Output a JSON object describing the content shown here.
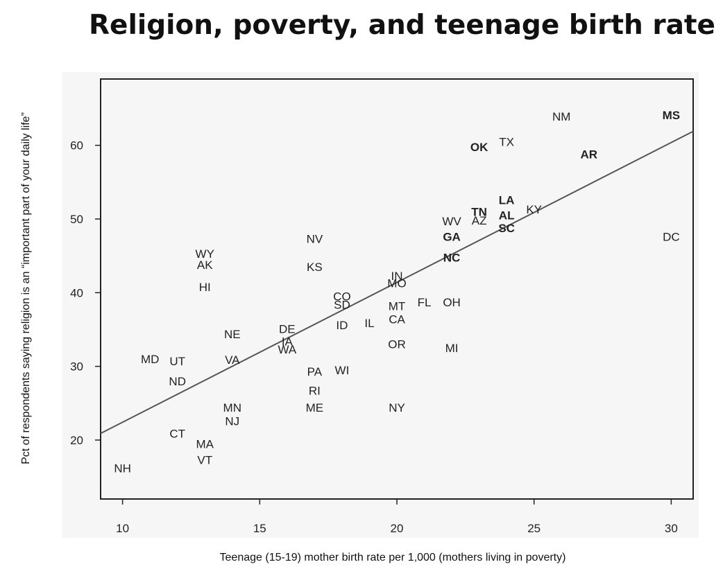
{
  "chart_data": {
    "type": "scatter",
    "title": "Religion, poverty, and teenage birth rate",
    "xlabel": "Teenage (15-19) mother birth rate per 1,000 (mothers living in poverty)",
    "ylabel": "Pct of respondents saying religion is an “important part of your daily life”",
    "xlim": [
      9.2,
      30.8
    ],
    "ylim": [
      12.0,
      69.0
    ],
    "xticks": [
      10,
      15,
      20,
      25,
      30
    ],
    "yticks": [
      20,
      30,
      40,
      50,
      60
    ],
    "grid": false,
    "marker": "state abbreviation text",
    "points": [
      {
        "label": "NM",
        "x": 26.0,
        "y": 63.9,
        "bold": false
      },
      {
        "label": "MS",
        "x": 30.0,
        "y": 64.1,
        "bold": true
      },
      {
        "label": "TX",
        "x": 24.0,
        "y": 60.5,
        "bold": false
      },
      {
        "label": "OK",
        "x": 23.0,
        "y": 59.8,
        "bold": true
      },
      {
        "label": "AR",
        "x": 27.0,
        "y": 58.8,
        "bold": true
      },
      {
        "label": "LA",
        "x": 24.0,
        "y": 52.6,
        "bold": true
      },
      {
        "label": "KY",
        "x": 25.0,
        "y": 51.3,
        "bold": false
      },
      {
        "label": "TN",
        "x": 23.0,
        "y": 51.0,
        "bold": true
      },
      {
        "label": "AL",
        "x": 24.0,
        "y": 50.5,
        "bold": true
      },
      {
        "label": "AZ",
        "x": 23.0,
        "y": 49.8,
        "bold": false
      },
      {
        "label": "WV",
        "x": 22.0,
        "y": 49.7,
        "bold": false
      },
      {
        "label": "SC",
        "x": 24.0,
        "y": 48.8,
        "bold": true
      },
      {
        "label": "GA",
        "x": 22.0,
        "y": 47.6,
        "bold": true
      },
      {
        "label": "DC",
        "x": 30.0,
        "y": 47.6,
        "bold": false
      },
      {
        "label": "NV",
        "x": 17.0,
        "y": 47.3,
        "bold": false
      },
      {
        "label": "WY",
        "x": 13.0,
        "y": 45.3,
        "bold": false
      },
      {
        "label": "NC",
        "x": 22.0,
        "y": 44.8,
        "bold": true
      },
      {
        "label": "AK",
        "x": 13.0,
        "y": 43.8,
        "bold": false
      },
      {
        "label": "KS",
        "x": 17.0,
        "y": 43.5,
        "bold": false
      },
      {
        "label": "IN",
        "x": 20.0,
        "y": 42.3,
        "bold": false
      },
      {
        "label": "MO",
        "x": 20.0,
        "y": 41.3,
        "bold": false
      },
      {
        "label": "HI",
        "x": 13.0,
        "y": 40.8,
        "bold": false
      },
      {
        "label": "CO",
        "x": 18.0,
        "y": 39.5,
        "bold": false
      },
      {
        "label": "FL",
        "x": 21.0,
        "y": 38.7,
        "bold": false
      },
      {
        "label": "OH",
        "x": 22.0,
        "y": 38.7,
        "bold": false
      },
      {
        "label": "SD",
        "x": 18.0,
        "y": 38.4,
        "bold": false
      },
      {
        "label": "MT",
        "x": 20.0,
        "y": 38.2,
        "bold": false
      },
      {
        "label": "CA",
        "x": 20.0,
        "y": 36.4,
        "bold": false
      },
      {
        "label": "IL",
        "x": 19.0,
        "y": 35.9,
        "bold": false
      },
      {
        "label": "ID",
        "x": 18.0,
        "y": 35.6,
        "bold": false
      },
      {
        "label": "DE",
        "x": 16.0,
        "y": 35.1,
        "bold": false
      },
      {
        "label": "NE",
        "x": 14.0,
        "y": 34.4,
        "bold": false
      },
      {
        "label": "IA",
        "x": 16.0,
        "y": 33.4,
        "bold": false
      },
      {
        "label": "OR",
        "x": 20.0,
        "y": 33.0,
        "bold": false
      },
      {
        "label": "MI",
        "x": 22.0,
        "y": 32.5,
        "bold": false
      },
      {
        "label": "WA",
        "x": 16.0,
        "y": 32.3,
        "bold": false
      },
      {
        "label": "MD",
        "x": 11.0,
        "y": 31.0,
        "bold": false
      },
      {
        "label": "VA",
        "x": 14.0,
        "y": 30.9,
        "bold": false
      },
      {
        "label": "UT",
        "x": 12.0,
        "y": 30.7,
        "bold": false
      },
      {
        "label": "WI",
        "x": 18.0,
        "y": 29.5,
        "bold": false
      },
      {
        "label": "PA",
        "x": 17.0,
        "y": 29.3,
        "bold": false
      },
      {
        "label": "ND",
        "x": 12.0,
        "y": 28.0,
        "bold": false
      },
      {
        "label": "RI",
        "x": 17.0,
        "y": 26.7,
        "bold": false
      },
      {
        "label": "MN",
        "x": 14.0,
        "y": 24.4,
        "bold": false
      },
      {
        "label": "ME",
        "x": 17.0,
        "y": 24.4,
        "bold": false
      },
      {
        "label": "NY",
        "x": 20.0,
        "y": 24.4,
        "bold": false
      },
      {
        "label": "NJ",
        "x": 14.0,
        "y": 22.6,
        "bold": false
      },
      {
        "label": "CT",
        "x": 12.0,
        "y": 20.9,
        "bold": false
      },
      {
        "label": "MA",
        "x": 13.0,
        "y": 19.5,
        "bold": false
      },
      {
        "label": "VT",
        "x": 13.0,
        "y": 17.3,
        "bold": false
      },
      {
        "label": "NH",
        "x": 10.0,
        "y": 16.2,
        "bold": false
      }
    ],
    "trendline": {
      "x": [
        9.2,
        30.8
      ],
      "y": [
        20.9,
        61.9
      ]
    },
    "colors": {
      "text": "#222222",
      "line": "#555555",
      "axis": "#222222",
      "plot_background": "#f6f6f6"
    }
  }
}
